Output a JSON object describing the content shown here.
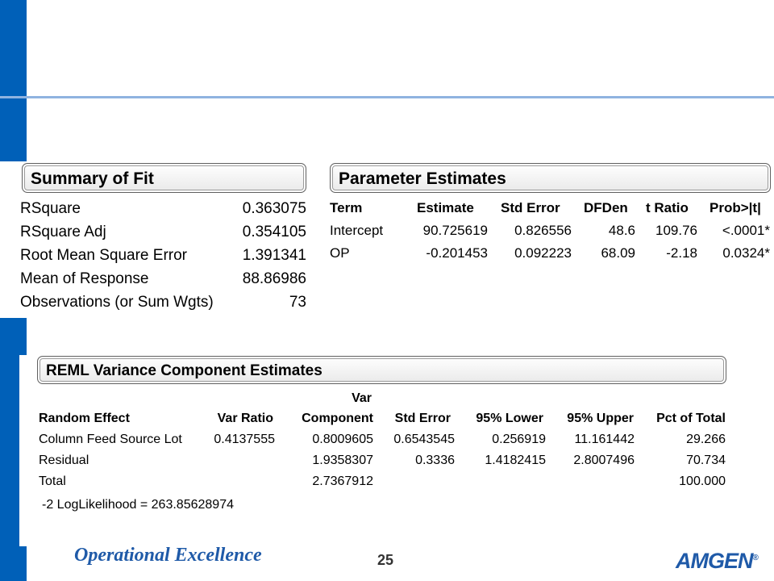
{
  "summary_of_fit": {
    "title": "Summary of Fit",
    "rows": [
      {
        "label": "RSquare",
        "value": "0.363075"
      },
      {
        "label": "RSquare Adj",
        "value": "0.354105"
      },
      {
        "label": "Root Mean Square Error",
        "value": "1.391341"
      },
      {
        "label": "Mean of Response",
        "value": "88.86986"
      },
      {
        "label": "Observations (or Sum Wgts)",
        "value": "73"
      }
    ]
  },
  "parameter_estimates": {
    "title": "Parameter Estimates",
    "headers": [
      "Term",
      "Estimate",
      "Std Error",
      "DFDen",
      "t Ratio",
      "Prob>|t|"
    ],
    "rows": [
      [
        "Intercept",
        "90.725619",
        "0.826556",
        "48.6",
        "109.76",
        "<.0001*"
      ],
      [
        "OP",
        "-0.201453",
        "0.092223",
        "68.09",
        "-2.18",
        "0.0324*"
      ]
    ]
  },
  "reml": {
    "title": "REML Variance Component Estimates",
    "header_top": "Var",
    "headers": [
      "Random Effect",
      "Var Ratio",
      "Component",
      "Std Error",
      "95% Lower",
      "95% Upper",
      "Pct of Total"
    ],
    "rows": [
      [
        "Column Feed Source Lot",
        "0.4137555",
        "0.8009605",
        "0.6543545",
        "0.256919",
        "11.161442",
        "29.266"
      ],
      [
        "Residual",
        "",
        "1.9358307",
        "0.3336",
        "1.4182415",
        "2.8007496",
        "70.734"
      ],
      [
        "Total",
        "",
        "2.7367912",
        "",
        "",
        "",
        "100.000"
      ]
    ],
    "loglikelihood": "-2 LogLikelihood = 263.85628974"
  },
  "footer": {
    "title": "Operational Excellence",
    "page_number": "25",
    "logo_text": "AMGEN",
    "logo_mark": "®"
  },
  "colors": {
    "accent": "#0060b8",
    "rule": "#8fb3e0",
    "footer_text": "#1f5aa8"
  }
}
